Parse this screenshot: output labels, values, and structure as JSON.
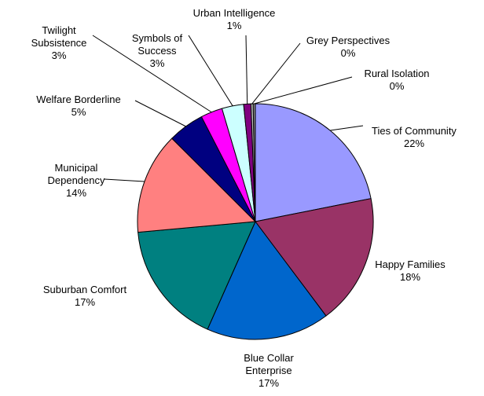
{
  "chart_data": {
    "type": "pie",
    "categories": [
      "Ties of Community",
      "Happy Families",
      "Blue Collar Enterprise",
      "Suburban Comfort",
      "Municipal Dependency",
      "Welfare Borderline",
      "Twilight Subsistence",
      "Symbols of Success",
      "Urban Intelligence",
      "Grey Perspectives",
      "Rural Isolation"
    ],
    "values": [
      22,
      18,
      17,
      17,
      14,
      5,
      3,
      3,
      1,
      0.3,
      0.3
    ],
    "value_labels": [
      "22%",
      "18%",
      "17%",
      "17%",
      "14%",
      "5%",
      "3%",
      "3%",
      "1%",
      "0%",
      "0%"
    ],
    "colors": [
      "#9999ff",
      "#993366",
      "#0066cc",
      "#008080",
      "#ff8080",
      "#000080",
      "#ff00ff",
      "#ccffff",
      "#800080",
      "#c0c0c0",
      "#808080"
    ]
  }
}
